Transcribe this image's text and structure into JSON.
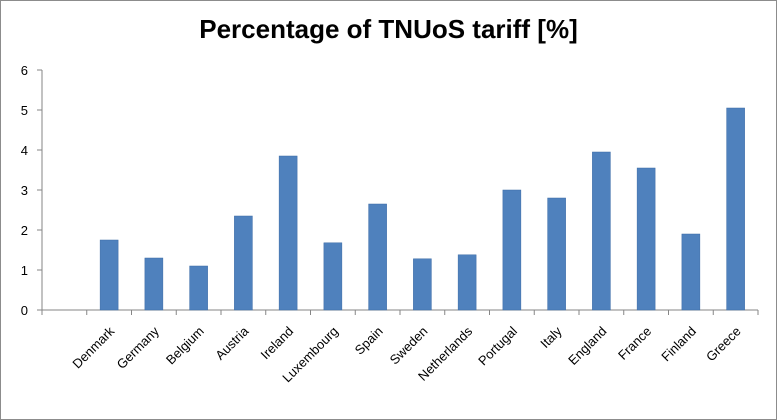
{
  "chart_data": {
    "type": "bar",
    "title": "Percentage of TNUoS tariff [%]",
    "xlabel": "",
    "ylabel": "",
    "categories": [
      "",
      "Denmark",
      "Germany",
      "Belgium",
      "Austria",
      "Ireland",
      "Luxembourg",
      "Spain",
      "Sweden",
      "Netherlands",
      "Portugal",
      "Italy",
      "England",
      "France",
      "Finland",
      "Greece"
    ],
    "values": [
      0,
      1.75,
      1.3,
      1.1,
      2.35,
      3.85,
      1.68,
      2.65,
      1.28,
      1.38,
      3.0,
      2.8,
      3.95,
      3.55,
      1.9,
      5.05
    ],
    "ylim": [
      0,
      6
    ],
    "yticks": [
      0,
      1,
      2,
      3,
      4,
      5,
      6
    ],
    "grid": false,
    "legend": "none",
    "bar_color": "#4f81bd"
  }
}
